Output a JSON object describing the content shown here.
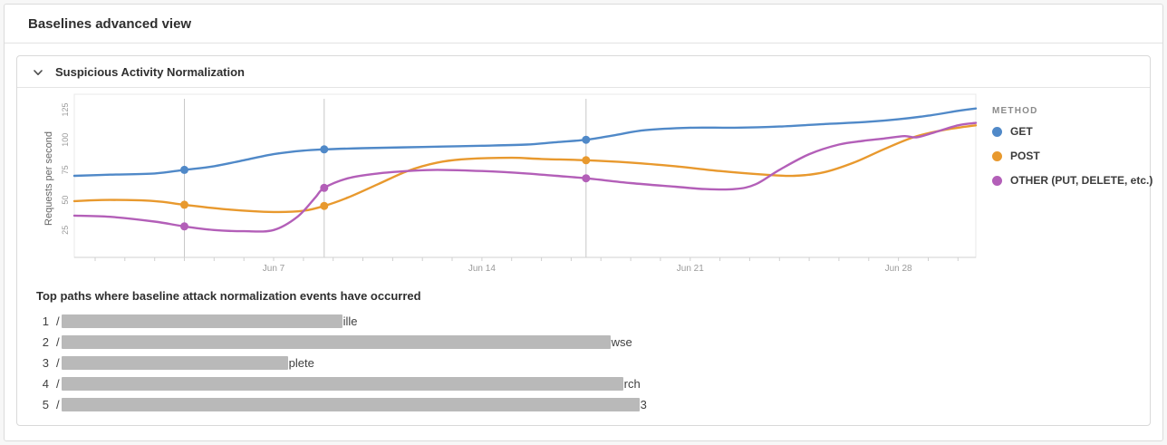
{
  "page": {
    "title": "Baselines advanced view"
  },
  "panel": {
    "title": "Suspicious Activity Normalization"
  },
  "chart_data": {
    "type": "line",
    "title": "",
    "xlabel": "",
    "ylabel": "Requests per second",
    "x_unit": "day of June",
    "xlim": [
      0.3,
      30.6
    ],
    "ylim": [
      0,
      137
    ],
    "yticks": [
      25,
      50,
      75,
      100,
      125
    ],
    "xticks": [
      {
        "day": 7,
        "label": "Jun 7"
      },
      {
        "day": 14,
        "label": "Jun 14"
      },
      {
        "day": 21,
        "label": "Jun 21"
      },
      {
        "day": 28,
        "label": "Jun 28"
      }
    ],
    "grid": "vertical event lines only",
    "legend": {
      "title": "METHOD",
      "position": "right"
    },
    "series": [
      {
        "name": "GET",
        "color": "#5089c8",
        "points": [
          [
            0.3,
            70
          ],
          [
            1.5,
            71
          ],
          [
            3,
            72
          ],
          [
            4,
            75
          ],
          [
            5,
            78
          ],
          [
            6,
            83
          ],
          [
            7,
            88
          ],
          [
            8,
            91
          ],
          [
            8.7,
            92
          ],
          [
            10,
            93
          ],
          [
            12,
            94
          ],
          [
            14,
            95
          ],
          [
            15.5,
            96
          ],
          [
            16.5,
            98
          ],
          [
            17.5,
            100
          ],
          [
            18.5,
            104
          ],
          [
            19.5,
            108
          ],
          [
            21,
            110
          ],
          [
            22.5,
            110
          ],
          [
            24,
            111
          ],
          [
            25.5,
            113
          ],
          [
            27,
            115
          ],
          [
            28,
            117
          ],
          [
            29,
            120
          ],
          [
            30,
            124
          ],
          [
            30.6,
            126
          ]
        ]
      },
      {
        "name": "POST",
        "color": "#e8992e",
        "points": [
          [
            0.3,
            49
          ],
          [
            1.5,
            50
          ],
          [
            3,
            49
          ],
          [
            4,
            46
          ],
          [
            5.5,
            42
          ],
          [
            7,
            40
          ],
          [
            8,
            41
          ],
          [
            8.7,
            45
          ],
          [
            9.5,
            52
          ],
          [
            10.5,
            63
          ],
          [
            11.5,
            74
          ],
          [
            12.5,
            81
          ],
          [
            13.5,
            84
          ],
          [
            15,
            85
          ],
          [
            16,
            84
          ],
          [
            17.5,
            83
          ],
          [
            19,
            81
          ],
          [
            20.5,
            78
          ],
          [
            22,
            74
          ],
          [
            23.5,
            71
          ],
          [
            24.5,
            70
          ],
          [
            25.5,
            73
          ],
          [
            26.5,
            81
          ],
          [
            27.5,
            92
          ],
          [
            28.5,
            102
          ],
          [
            29.5,
            108
          ],
          [
            30.6,
            112
          ]
        ]
      },
      {
        "name": "OTHER (PUT, DELETE, etc.)",
        "color": "#b35fb8",
        "points": [
          [
            0.3,
            37
          ],
          [
            1.5,
            36
          ],
          [
            3,
            32
          ],
          [
            4,
            28
          ],
          [
            5,
            25
          ],
          [
            6,
            24
          ],
          [
            7,
            25
          ],
          [
            7.8,
            36
          ],
          [
            8.4,
            52
          ],
          [
            8.7,
            60
          ],
          [
            9.5,
            68
          ],
          [
            10.5,
            72
          ],
          [
            11.5,
            74
          ],
          [
            12.5,
            75
          ],
          [
            14,
            74
          ],
          [
            15.5,
            72
          ],
          [
            16.5,
            70
          ],
          [
            17.5,
            68
          ],
          [
            19,
            64
          ],
          [
            20.5,
            61
          ],
          [
            21.5,
            59
          ],
          [
            22.5,
            59
          ],
          [
            23.2,
            63
          ],
          [
            24,
            75
          ],
          [
            25,
            88
          ],
          [
            26,
            96
          ],
          [
            26.8,
            99
          ],
          [
            27.5,
            101
          ],
          [
            28.2,
            103
          ],
          [
            28.6,
            102
          ],
          [
            29.2,
            106
          ],
          [
            30,
            112
          ],
          [
            30.6,
            114
          ]
        ]
      }
    ],
    "event_lines": [
      {
        "day": 4,
        "values": {
          "GET": 75,
          "POST": 46,
          "OTHER (PUT, DELETE, etc.)": 28
        }
      },
      {
        "day": 8.7,
        "values": {
          "GET": 92,
          "POST": 45,
          "OTHER (PUT, DELETE, etc.)": 60
        }
      },
      {
        "day": 17.5,
        "values": {
          "GET": 100,
          "POST": 83,
          "OTHER (PUT, DELETE, etc.)": 68
        }
      }
    ]
  },
  "paths_section": {
    "heading": "Top paths where baseline attack normalization events have occurred",
    "items": [
      {
        "rank": "1",
        "prefix": "/",
        "redacted_width": 310,
        "suffix": "ille"
      },
      {
        "rank": "2",
        "prefix": "/",
        "redacted_width": 606,
        "suffix": "wse"
      },
      {
        "rank": "3",
        "prefix": "/",
        "redacted_width": 250,
        "suffix": "plete"
      },
      {
        "rank": "4",
        "prefix": "/",
        "redacted_width": 620,
        "suffix": "rch"
      },
      {
        "rank": "5",
        "prefix": "/",
        "redacted_width": 638,
        "suffix": "3"
      }
    ]
  },
  "colors": {
    "event_line": "#c8c8c8",
    "axis_line": "#d0d0d0",
    "frame": "#e8e8e8",
    "tick_label": "#9a9a9a",
    "axis_title": "#666666",
    "redaction": "#b9b9b9"
  }
}
